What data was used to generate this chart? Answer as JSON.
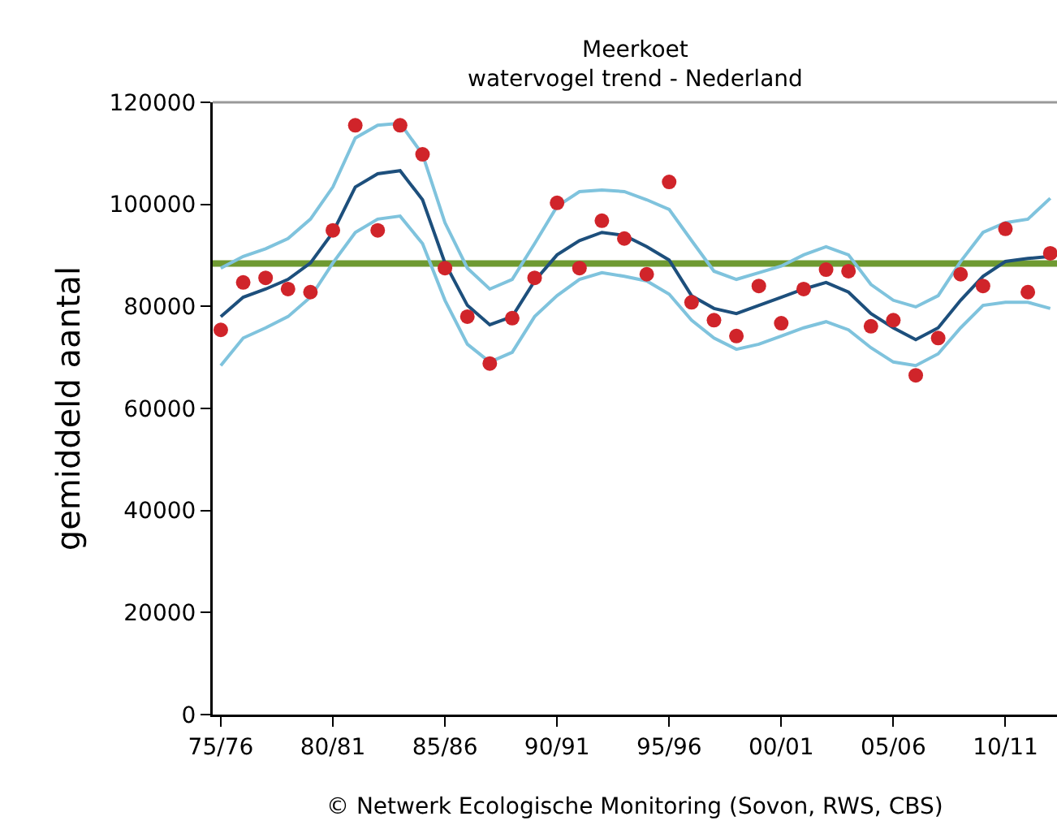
{
  "chart_data": {
    "type": "scatter",
    "title": "Meerkoet",
    "subtitle": "watervogel trend - Nederland",
    "ylabel": "gemiddeld aantal",
    "categories": [
      "75/76",
      null,
      null,
      null,
      null,
      "80/81",
      null,
      null,
      null,
      null,
      "85/86",
      null,
      null,
      null,
      null,
      "90/91",
      null,
      null,
      null,
      null,
      "95/96",
      null,
      null,
      null,
      null,
      "00/01",
      null,
      null,
      null,
      null,
      "05/06",
      null,
      null,
      null,
      null,
      "10/11",
      null,
      null
    ],
    "series": [
      {
        "type": "line",
        "color": "#7fc3dd",
        "marker": "none",
        "values": [
          87500,
          89800,
          91300,
          93300,
          97100,
          103400,
          113000,
          115500,
          115900,
          109800,
          96400,
          87500,
          83400,
          85300,
          92300,
          99600,
          102500,
          102800,
          102500,
          100900,
          99000,
          92900,
          86900,
          85300,
          86600,
          87900,
          90100,
          91700,
          90100,
          84300,
          81200,
          79900,
          82100,
          88800,
          94500,
          96400,
          97100,
          101200
        ]
      },
      {
        "type": "line",
        "color": "#7fc3dd",
        "marker": "none",
        "values": [
          68400,
          73800,
          75800,
          78000,
          81800,
          88500,
          94500,
          97100,
          97700,
          92300,
          81200,
          72600,
          69100,
          71000,
          78000,
          82100,
          85300,
          86600,
          85900,
          85000,
          82400,
          77300,
          73800,
          71600,
          72600,
          74200,
          75800,
          77000,
          75400,
          71900,
          69100,
          68400,
          70700,
          75800,
          80200,
          80800,
          80800,
          79600
        ]
      },
      {
        "type": "line",
        "color": "#1d4f7c",
        "marker": "none",
        "values": [
          78000,
          81800,
          83400,
          85300,
          88500,
          94500,
          103400,
          106000,
          106600,
          100900,
          88500,
          80200,
          76400,
          78000,
          85000,
          90100,
          92900,
          94500,
          93900,
          91700,
          89100,
          82100,
          79600,
          78600,
          80200,
          81800,
          83400,
          84700,
          82800,
          78600,
          75800,
          73500,
          75800,
          81200,
          85900,
          88800,
          89400,
          89800
        ]
      },
      {
        "color": "#d0242a",
        "marker": "circle",
        "values": [
          75400,
          84700,
          85600,
          83400,
          82800,
          94900,
          115500,
          94900,
          115500,
          109800,
          87500,
          78000,
          68800,
          77700,
          85600,
          100300,
          87500,
          96800,
          93300,
          86300,
          104400,
          80800,
          77300,
          74200,
          84000,
          76700,
          83400,
          87200,
          86900,
          76100,
          77300,
          66500,
          73800,
          86300,
          84000,
          95200,
          82800,
          90400
        ]
      }
    ],
    "ref_lines": [
      {
        "axis": "y",
        "value": 88400,
        "color": "#6f9a32"
      }
    ],
    "ylim": [
      0,
      120000
    ],
    "yticks": [
      0,
      20000,
      40000,
      60000,
      80000,
      100000,
      120000
    ],
    "grid": false,
    "annotations": [
      "© Netwerk Ecologische Monitoring (Sovon, RWS, CBS)"
    ]
  }
}
